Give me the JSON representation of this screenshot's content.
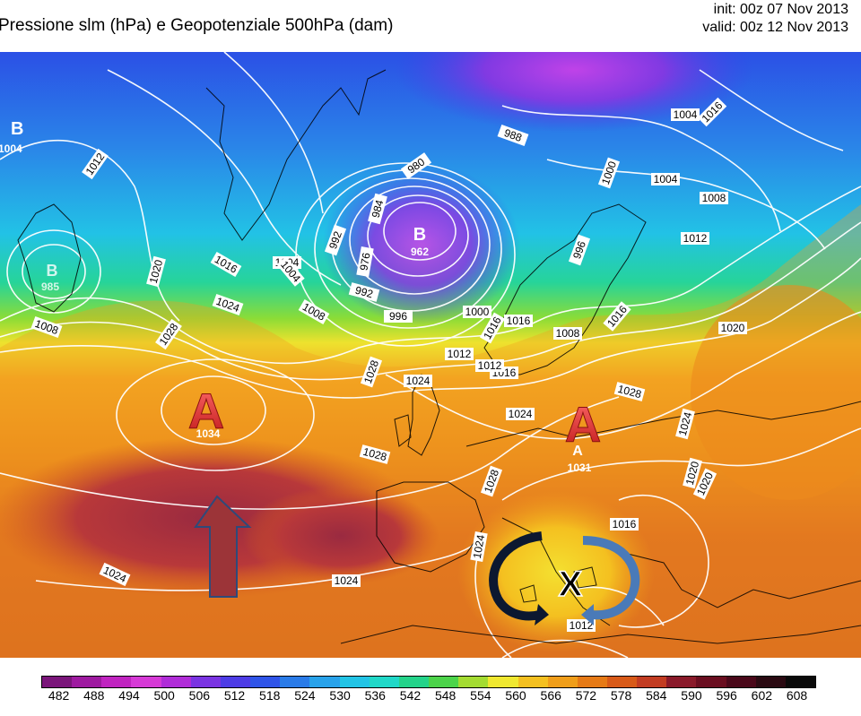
{
  "header": {
    "title": "Pressione slm (hPa) e Geopotenziale 500hPa (dam)",
    "init": "init: 00z 07 Nov 2013",
    "valid": "valid: 00z 12 Nov 2013"
  },
  "systems": {
    "low_labels": [
      "B",
      "B",
      "B"
    ],
    "low_values": [
      "1004",
      "962",
      "985"
    ],
    "high_labels": [
      "A",
      "A",
      "A"
    ],
    "high_values": [
      "1034",
      "1031"
    ],
    "cutoff_marker": "X"
  },
  "isobar_labels": [
    "1012",
    "1004",
    "992",
    "988",
    "996",
    "1000",
    "1008",
    "1004",
    "1012",
    "1008",
    "1020",
    "1024",
    "1016",
    "1024",
    "1028",
    "1024",
    "1020",
    "1016",
    "1012",
    "1008",
    "1004",
    "1016",
    "1020",
    "1024",
    "1028",
    "1028",
    "1024",
    "1028",
    "1024",
    "1020",
    "1016",
    "1012",
    "1024",
    "1028",
    "1016",
    "984",
    "980",
    "976",
    "992",
    "1000",
    "996",
    "1008",
    "1004",
    "1016",
    "1012",
    "1016"
  ],
  "legend": {
    "values": [
      "482",
      "488",
      "494",
      "500",
      "506",
      "512",
      "518",
      "524",
      "530",
      "536",
      "542",
      "548",
      "554",
      "560",
      "566",
      "572",
      "578",
      "584",
      "590",
      "596",
      "602",
      "608"
    ],
    "colors": [
      "#7a157a",
      "#9e1aa0",
      "#c024c0",
      "#d63ad6",
      "#b02cd8",
      "#7a34e2",
      "#4d3ce6",
      "#2f54e8",
      "#2a7be8",
      "#28a2ea",
      "#22c4e6",
      "#20d8c8",
      "#24d48a",
      "#4cd44a",
      "#a4dc32",
      "#f0e830",
      "#f4c020",
      "#f09e1a",
      "#e67a16",
      "#d85a18",
      "#c23c22",
      "#8a1a2a",
      "#6a0e20",
      "#4a081a",
      "#2a0a12",
      "#0a0a0a"
    ]
  }
}
